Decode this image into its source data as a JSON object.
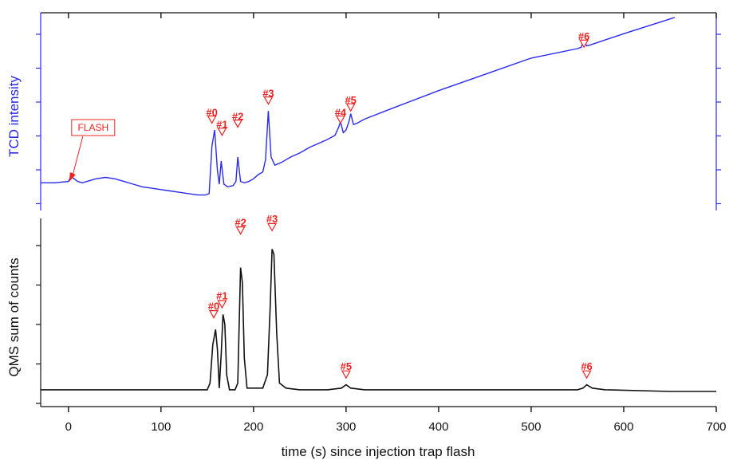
{
  "colors": {
    "tcd": "#2a2aee",
    "qms": "#111111",
    "marker": "#ee2222"
  },
  "chart_data": [
    {
      "type": "line",
      "panel": "top",
      "ylabel": "TCD intensity",
      "xlim": [
        -30,
        700
      ],
      "annotation": {
        "text": "FLASH",
        "x": 0
      },
      "peak_markers": [
        {
          "label": "#0",
          "x": 155,
          "y": 0.58,
          "mark_y": 0.55
        },
        {
          "label": "#1",
          "x": 166,
          "y": 0.49,
          "mark_y": 0.46
        },
        {
          "label": "#2",
          "x": 183,
          "y": 0.55,
          "mark_y": 0.52
        },
        {
          "label": "#3",
          "x": 216,
          "y": 0.72,
          "mark_y": 0.69
        },
        {
          "label": "#4",
          "x": 294,
          "y": 0.58,
          "mark_y": 0.55
        },
        {
          "label": "#5",
          "x": 305,
          "y": 0.67,
          "mark_y": 0.64
        },
        {
          "label": "#6",
          "x": 557,
          "y": 1.14,
          "mark_y": 1.11
        }
      ],
      "series": [
        {
          "x": [
            -30,
            -15,
            0,
            3,
            6,
            10,
            15,
            20,
            30,
            40,
            50,
            60,
            70,
            80,
            90,
            100,
            110,
            120,
            130,
            140,
            148,
            152,
            155,
            158,
            161,
            163,
            165,
            168,
            172,
            178,
            181,
            183,
            186,
            190,
            195,
            200,
            205,
            210,
            213,
            216,
            219,
            223,
            230,
            240,
            250,
            260,
            270,
            280,
            288,
            292,
            294,
            297,
            300,
            303,
            305,
            308,
            312,
            320,
            350,
            400,
            450,
            500,
            550,
            554,
            557,
            560,
            565,
            600,
            655
          ],
          "values": [
            0.11,
            0.11,
            0.12,
            0.16,
            0.14,
            0.12,
            0.11,
            0.12,
            0.14,
            0.15,
            0.14,
            0.12,
            0.1,
            0.08,
            0.07,
            0.06,
            0.05,
            0.04,
            0.03,
            0.02,
            0.02,
            0.03,
            0.38,
            0.5,
            0.2,
            0.1,
            0.27,
            0.1,
            0.08,
            0.09,
            0.12,
            0.3,
            0.12,
            0.11,
            0.12,
            0.14,
            0.17,
            0.19,
            0.28,
            0.64,
            0.3,
            0.24,
            0.26,
            0.3,
            0.33,
            0.37,
            0.4,
            0.43,
            0.46,
            0.52,
            0.56,
            0.48,
            0.5,
            0.56,
            0.62,
            0.54,
            0.55,
            0.58,
            0.66,
            0.79,
            0.91,
            1.03,
            1.1,
            1.11,
            1.16,
            1.12,
            1.13,
            1.21,
            1.33
          ]
        }
      ]
    },
    {
      "type": "line",
      "panel": "bottom",
      "ylabel": "QMS sum of counts",
      "xlabel": "time (s) since injection trap flash",
      "xlim": [
        -30,
        700
      ],
      "x_ticks": [
        0,
        100,
        200,
        300,
        400,
        500,
        600,
        700
      ],
      "peak_markers": [
        {
          "label": "#0",
          "x": 157,
          "y": 0.47,
          "mark_y": 0.44
        },
        {
          "label": "#1",
          "x": 166,
          "y": 0.53,
          "mark_y": 0.5
        },
        {
          "label": "#2",
          "x": 186,
          "y": 0.97,
          "mark_y": 0.94
        },
        {
          "label": "#3",
          "x": 220,
          "y": 0.99,
          "mark_y": 0.96
        },
        {
          "label": "#5",
          "x": 300,
          "y": 0.11,
          "mark_y": 0.08
        },
        {
          "label": "#6",
          "x": 560,
          "y": 0.11,
          "mark_y": 0.08
        }
      ],
      "series": [
        {
          "x": [
            -30,
            0,
            50,
            100,
            150,
            153,
            156,
            159,
            161,
            163,
            165,
            167,
            169,
            171,
            174,
            180,
            183,
            186,
            188,
            190,
            193,
            200,
            210,
            215,
            218,
            220,
            222,
            225,
            228,
            235,
            250,
            280,
            295,
            300,
            305,
            320,
            400,
            500,
            550,
            556,
            560,
            566,
            580,
            650,
            700
          ],
          "values": [
            0.01,
            0.01,
            0.01,
            0.01,
            0.01,
            0.05,
            0.28,
            0.37,
            0.25,
            0.02,
            0.22,
            0.46,
            0.4,
            0.1,
            0.01,
            0.01,
            0.05,
            0.74,
            0.65,
            0.2,
            0.02,
            0.02,
            0.02,
            0.1,
            0.5,
            0.85,
            0.82,
            0.35,
            0.05,
            0.02,
            0.01,
            0.01,
            0.02,
            0.04,
            0.02,
            0.01,
            0.01,
            0.01,
            0.01,
            0.02,
            0.04,
            0.02,
            0.01,
            0.0,
            0.0
          ]
        }
      ]
    }
  ]
}
